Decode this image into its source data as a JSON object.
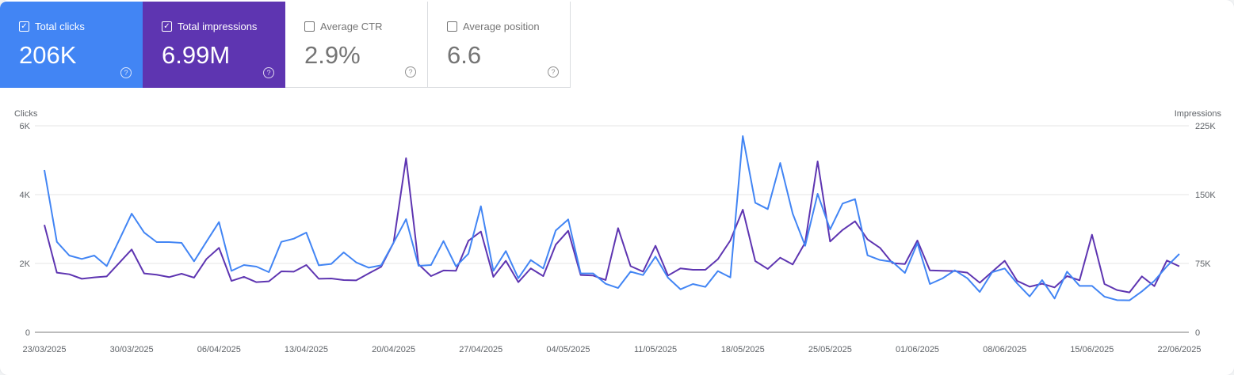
{
  "metrics": [
    {
      "label": "Total clicks",
      "value": "206K",
      "checked": true,
      "color": "#4285f4"
    },
    {
      "label": "Total impressions",
      "value": "6.99M",
      "checked": true,
      "color": "#5e35b1"
    },
    {
      "label": "Average CTR",
      "value": "2.9%",
      "checked": false
    },
    {
      "label": "Average position",
      "value": "6.6",
      "checked": false
    }
  ],
  "chart_data": {
    "type": "line",
    "ylabel_left": "Clicks",
    "ylabel_right": "Impressions",
    "ylim_left": [
      0,
      6000
    ],
    "ylim_right": [
      0,
      225000
    ],
    "yticks_left": [
      "0",
      "2K",
      "4K",
      "6K"
    ],
    "yticks_right": [
      "0",
      "75K",
      "150K",
      "225K"
    ],
    "xtick_labels": [
      "23/03/2025",
      "30/03/2025",
      "06/04/2025",
      "13/04/2025",
      "20/04/2025",
      "27/04/2025",
      "04/05/2025",
      "11/05/2025",
      "18/05/2025",
      "25/05/2025",
      "01/06/2025",
      "08/06/2025",
      "15/06/2025",
      "22/06/2025"
    ],
    "grid": true,
    "x_start": "23/03/2025",
    "x_end": "22/06/2025",
    "series": [
      {
        "name": "Clicks",
        "axis": "left",
        "color": "#4285f4",
        "values": [
          4713,
          2628,
          2230,
          2130,
          2230,
          1923,
          2682,
          3448,
          2897,
          2621,
          2621,
          2598,
          2061,
          2636,
          3203,
          1785,
          1954,
          1908,
          1747,
          2628,
          2720,
          2897,
          1946,
          1985,
          2322,
          2031,
          1877,
          1946,
          2605,
          3287,
          1931,
          1954,
          2651,
          1916,
          2284,
          3663,
          1785,
          2360,
          1571,
          2100,
          1854,
          2958,
          3280,
          1709,
          1709,
          1410,
          1287,
          1762,
          1663,
          2199,
          1586,
          1249,
          1402,
          1318,
          1778,
          1594,
          5701,
          3763,
          3579,
          4920,
          3448,
          2513,
          4023,
          2989,
          3739,
          3870,
          2238,
          2100,
          2046,
          1724,
          2590,
          1402,
          1563,
          1801,
          1571,
          1172,
          1747,
          1854,
          1418,
          1042,
          1517,
          981,
          1762,
          1349,
          1349,
          1035,
          935,
          927,
          1188,
          1494,
          1916,
          2276
        ]
      },
      {
        "name": "Impressions",
        "axis": "right",
        "color": "#5e35b1",
        "values": [
          117000,
          65000,
          63200,
          58300,
          59800,
          60900,
          75600,
          90200,
          64100,
          62700,
          60100,
          63800,
          59500,
          79900,
          92000,
          56000,
          60400,
          54600,
          55500,
          66400,
          66100,
          73300,
          58300,
          58600,
          56900,
          56600,
          64100,
          71300,
          97700,
          189700,
          74100,
          61200,
          67300,
          67000,
          99700,
          109800,
          60400,
          77900,
          54600,
          69600,
          61200,
          95400,
          110600,
          62400,
          61800,
          56900,
          113500,
          72100,
          66100,
          94300,
          61800,
          69600,
          68100,
          68100,
          79600,
          100000,
          133600,
          77600,
          69000,
          81300,
          73900,
          97700,
          186200,
          98900,
          111500,
          121000,
          101200,
          92000,
          75300,
          74400,
          100000,
          67500,
          67000,
          66700,
          65000,
          54000,
          66100,
          77900,
          56000,
          49700,
          52900,
          48900,
          61200,
          56600,
          106300,
          52600,
          46000,
          43400,
          60900,
          50300,
          78200,
          71900
        ]
      }
    ]
  }
}
